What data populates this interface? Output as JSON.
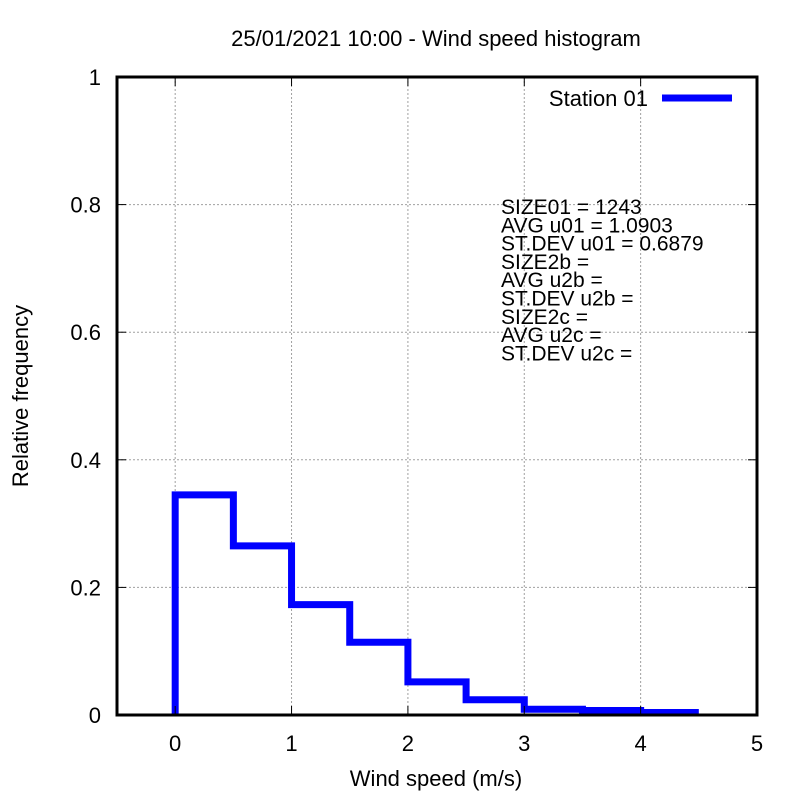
{
  "chart_data": {
    "type": "histogram",
    "title": "25/01/2021 10:00 - Wind speed histogram",
    "xlabel": "Wind speed (m/s)",
    "ylabel": "Relative frequency",
    "xlim": [
      -0.5,
      5
    ],
    "ylim": [
      0,
      1
    ],
    "xticks": [
      "0",
      "1",
      "2",
      "3",
      "4",
      "5"
    ],
    "yticks": [
      "0",
      "0.2",
      "0.4",
      "0.6",
      "0.8",
      "1"
    ],
    "grid": true,
    "legend_position": "top-right",
    "bin_width": 0.5,
    "series": [
      {
        "name": "Station 01",
        "color": "#0000ff",
        "bin_edges": [
          0,
          0.5,
          1.0,
          1.5,
          2.0,
          2.5,
          3.0,
          3.5,
          4.0,
          4.5
        ],
        "values": [
          0.345,
          0.265,
          0.173,
          0.114,
          0.052,
          0.024,
          0.009,
          0.007,
          0.004
        ]
      }
    ],
    "annotations": [
      "SIZE01 = 1243",
      "AVG u01 = 1.0903",
      "ST.DEV u01 = 0.6879",
      "SIZE2b =",
      "AVG u2b =",
      "ST.DEV u2b =",
      "SIZE2c =",
      "AVG u2c =",
      "ST.DEV u2c ="
    ]
  }
}
